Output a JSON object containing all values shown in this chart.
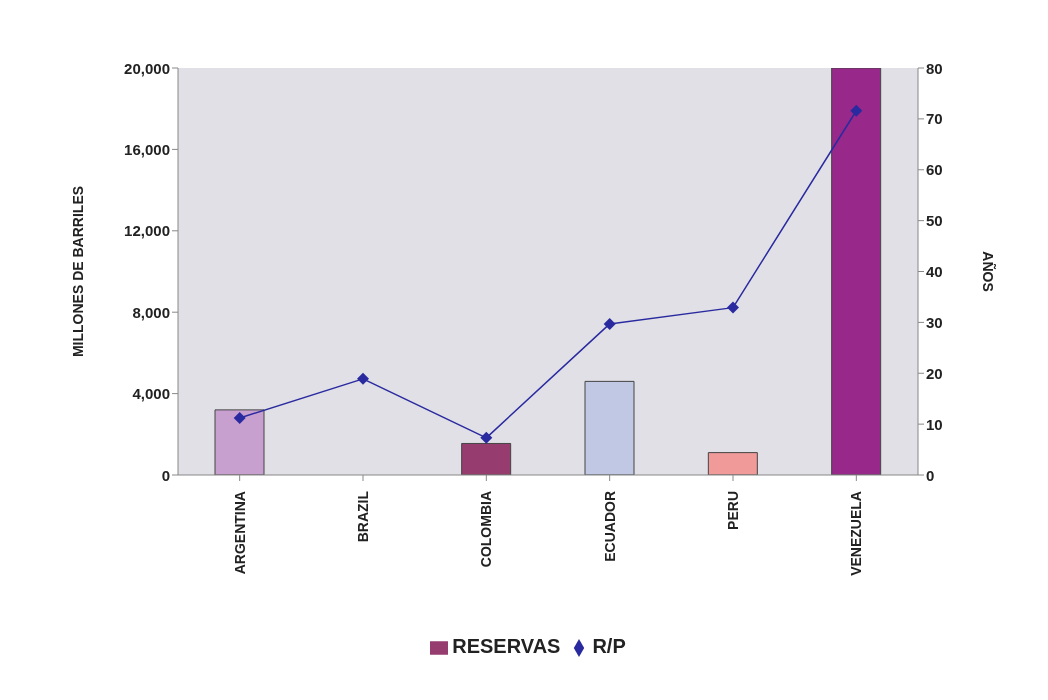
{
  "chart_data": {
    "type": "bar",
    "ylabel": "MILLONES DE BARRILES",
    "y2label": "AÑOS",
    "categories": [
      "ARGENTINA",
      "BRAZIL",
      "COLOMBIA",
      "ECUADOR",
      "PERU",
      "VENEZUELA"
    ],
    "series": [
      {
        "name": "RESERVAS",
        "color": "#963c6e",
        "colors": [
          "#c8a0d0",
          "#963c6e",
          "#963c6e",
          "#c0c8e4",
          "#f09a9a",
          "#98288a"
        ],
        "values": [
          3200,
          null,
          1550,
          4600,
          1100,
          20000
        ]
      },
      {
        "name": "R/P",
        "type": "line",
        "axis": "y2",
        "color": "#2a2aa0",
        "marker": "diamond",
        "values": [
          11.2,
          18.9,
          7.3,
          29.7,
          32.9,
          71.6
        ]
      }
    ],
    "ylim": [
      0,
      20000
    ],
    "yticks": [
      {
        "value": 0,
        "label": "0"
      },
      {
        "value": 4000,
        "label": "4,000"
      },
      {
        "value": 8000,
        "label": "8,000"
      },
      {
        "value": 12000,
        "label": "12,000"
      },
      {
        "value": 16000,
        "label": "16,000"
      },
      {
        "value": 20000,
        "label": "20,000"
      }
    ],
    "y2lim": [
      0,
      80
    ],
    "y2ticks": [
      0,
      10,
      20,
      30,
      40,
      50,
      60,
      70,
      80
    ],
    "grid": false,
    "legend": "bottom"
  }
}
